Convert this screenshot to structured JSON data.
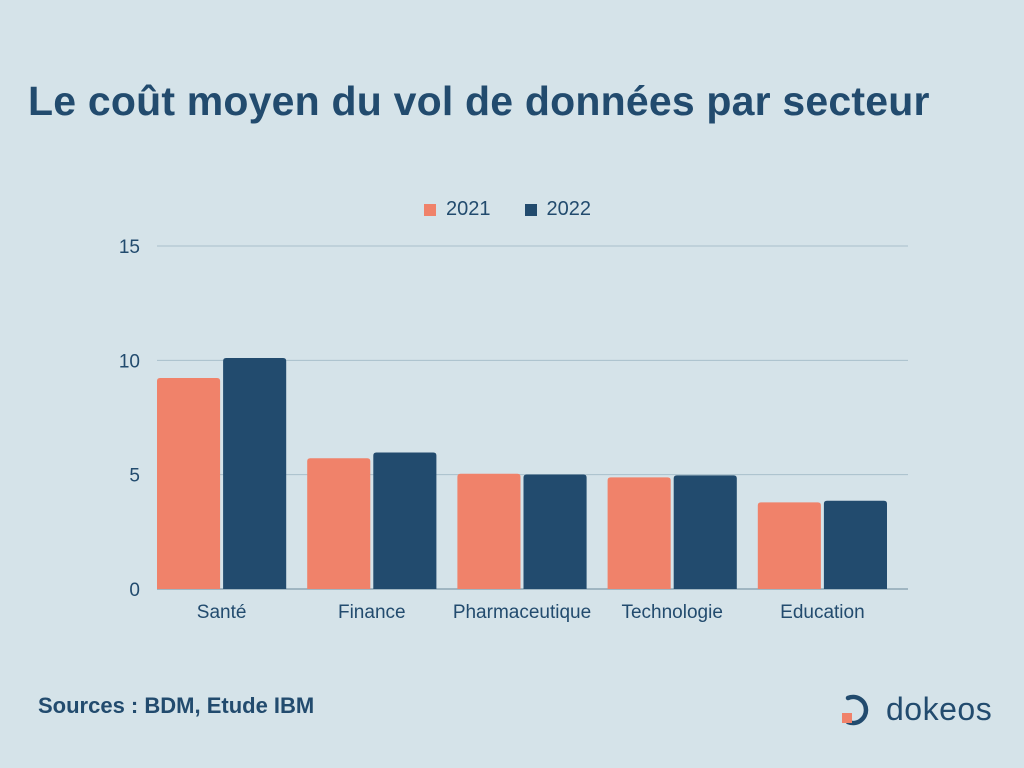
{
  "title": "Le coût moyen du vol de données par secteur",
  "sources": "Sources : BDM, Etude IBM",
  "logo": {
    "text": "dokeos",
    "icon": "dokeos-logo-icon"
  },
  "colors": {
    "background": "#d5e3e9",
    "series_2021": "#f0826a",
    "series_2022": "#224b6e",
    "text": "#224b6e",
    "grid": "#a9bfcb"
  },
  "chart_data": {
    "type": "bar",
    "categories": [
      "Santé",
      "Finance",
      "Pharmaceutique",
      "Technologie",
      "Education"
    ],
    "series": [
      {
        "name": "2021",
        "values": [
          9.23,
          5.72,
          5.04,
          4.88,
          3.79
        ]
      },
      {
        "name": "2022",
        "values": [
          10.1,
          5.97,
          5.01,
          4.97,
          3.86
        ]
      }
    ],
    "yticks": [
      0,
      5,
      10,
      15
    ],
    "ylim": [
      0,
      15
    ],
    "grid": true,
    "legend": "top-center"
  }
}
